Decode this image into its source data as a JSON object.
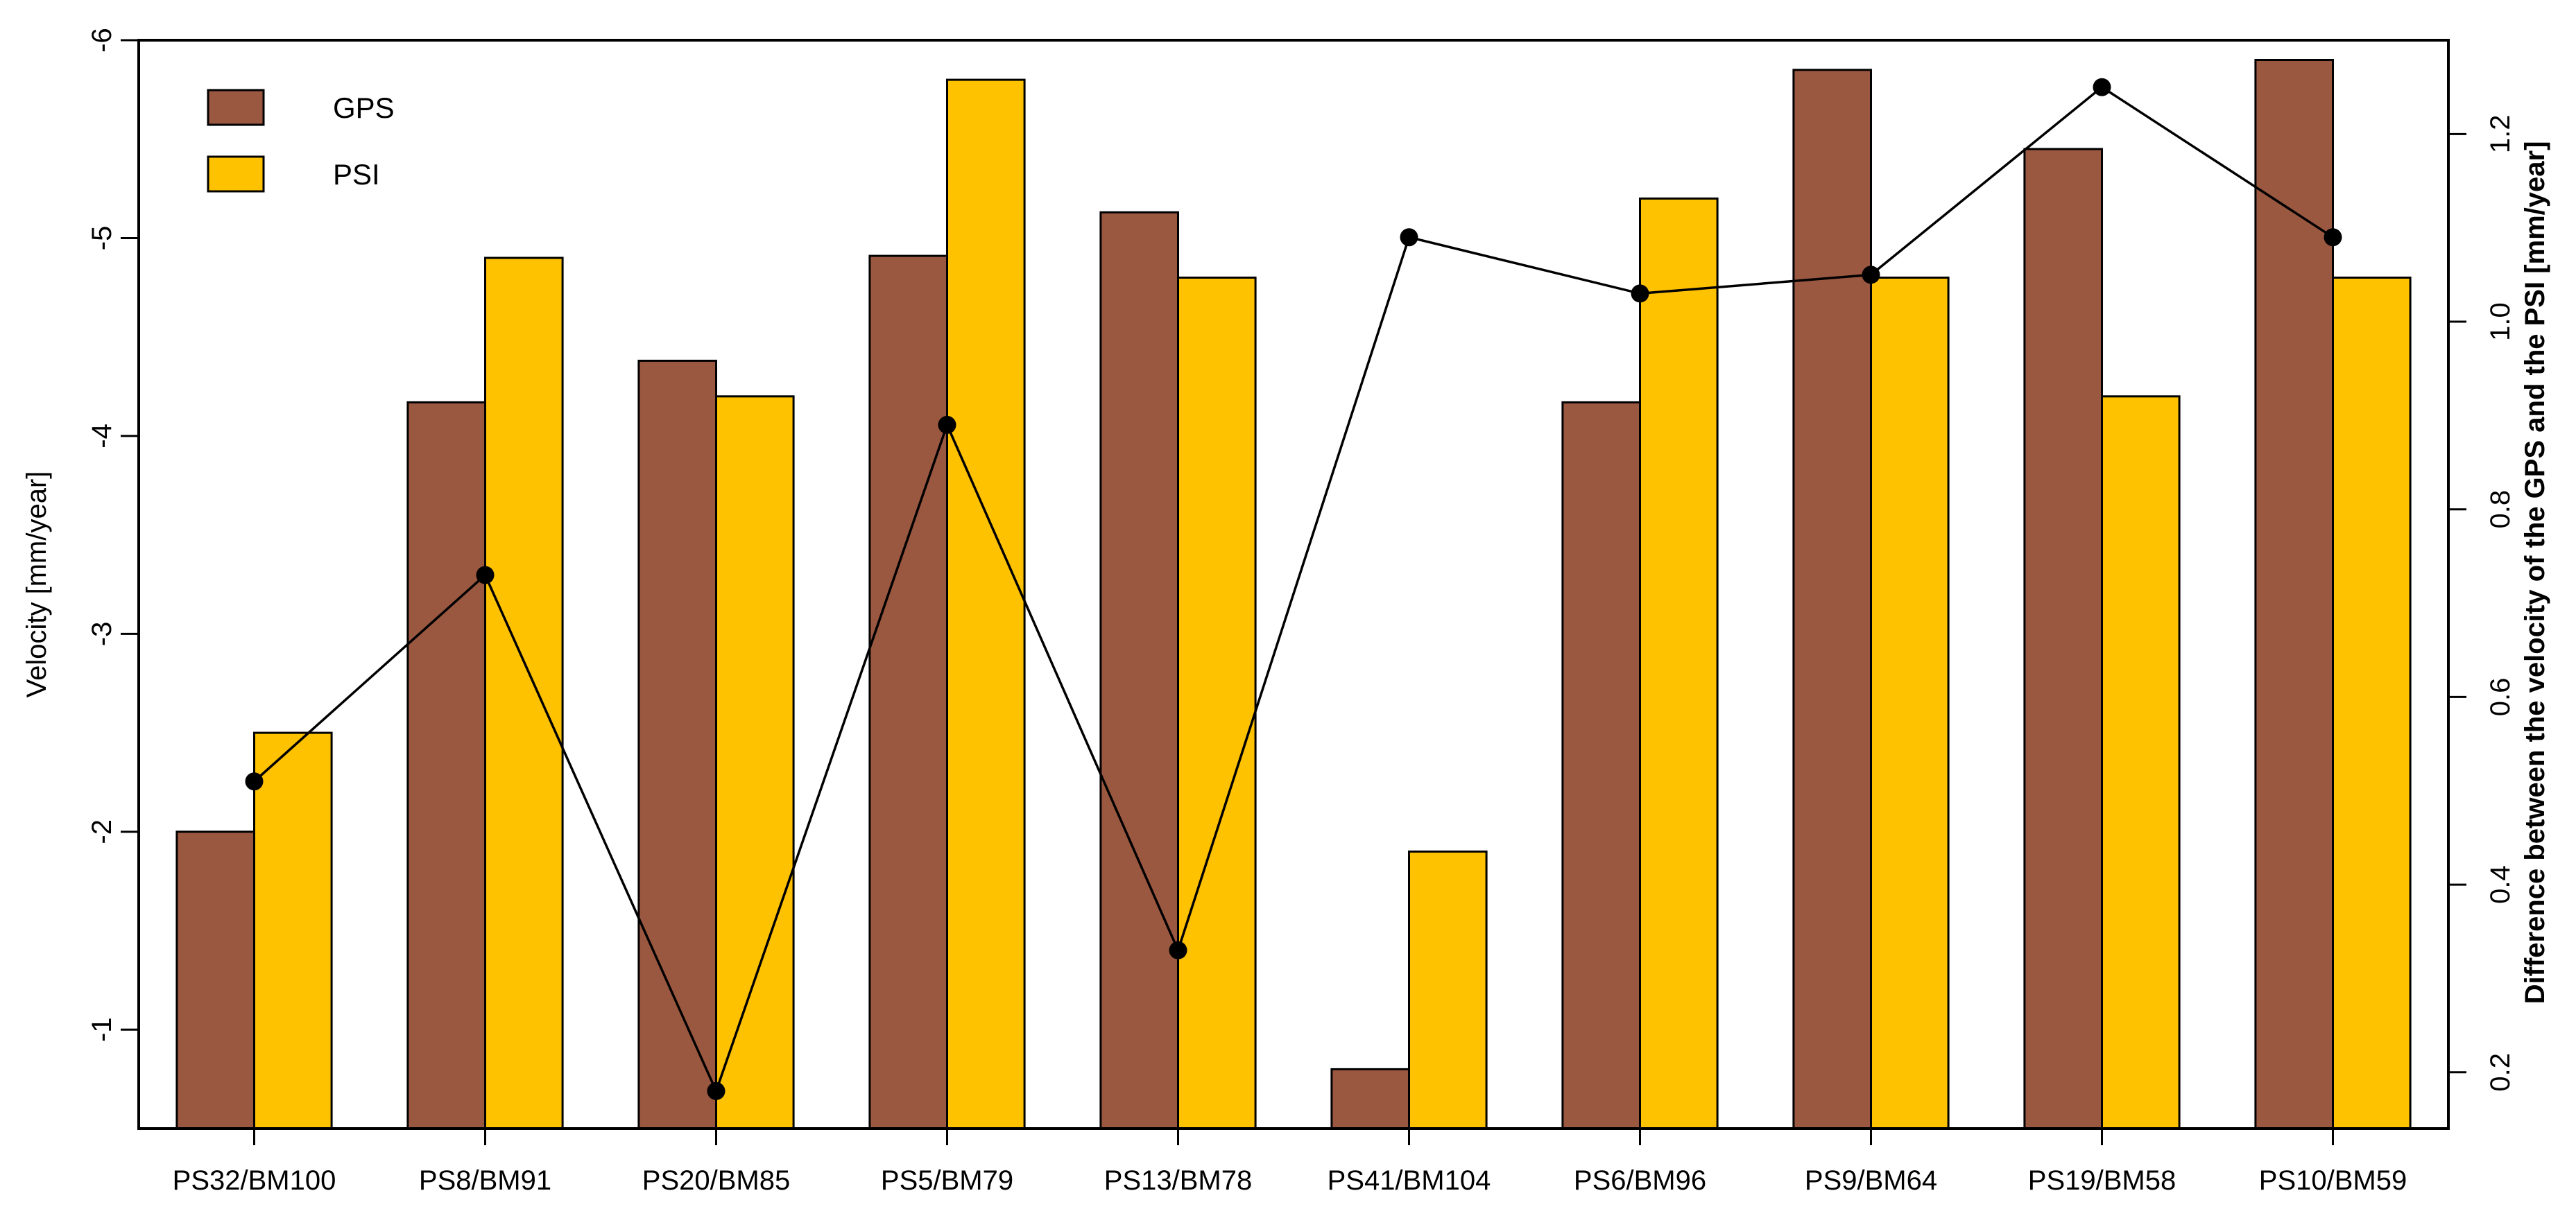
{
  "chart_data": {
    "type": "bar",
    "categories": [
      "PS32/BM100",
      "PS8/BM91",
      "PS20/BM85",
      "PS5/BM79",
      "PS13/BM78",
      "PS41/BM104",
      "PS6/BM96",
      "PS9/BM64",
      "PS19/BM58",
      "PS10/BM59"
    ],
    "series": [
      {
        "name": "GPS",
        "color": "#9B5841",
        "values": [
          -2.0,
          -4.17,
          -4.38,
          -4.91,
          -5.13,
          -0.8,
          -4.17,
          -5.85,
          -5.45,
          -5.9
        ]
      },
      {
        "name": "PSI",
        "color": "#FFC200",
        "values": [
          -2.5,
          -4.9,
          -4.2,
          -5.8,
          -4.8,
          -1.9,
          -5.2,
          -4.8,
          -4.2,
          -4.8
        ]
      }
    ],
    "difference_series": {
      "name": "Difference between the velocity of the GPS and the PSI",
      "color": "#000000",
      "values": [
        0.51,
        0.73,
        0.18,
        0.89,
        0.33,
        1.09,
        1.03,
        1.05,
        1.25,
        1.09
      ]
    },
    "ylabel": "Velocity [mm/year]",
    "ylabel_right": "Difference between the velocity of the GPS and the PSI [mm/year]",
    "ylim": [
      -0.5,
      -6
    ],
    "yticks": [
      -1,
      -2,
      -3,
      -4,
      -5,
      -6
    ],
    "y2lim": [
      0.14,
      1.3
    ],
    "y2ticks": [
      0.2,
      0.4,
      0.6,
      0.8,
      1.0,
      1.2
    ],
    "legend_position": "top-left"
  }
}
